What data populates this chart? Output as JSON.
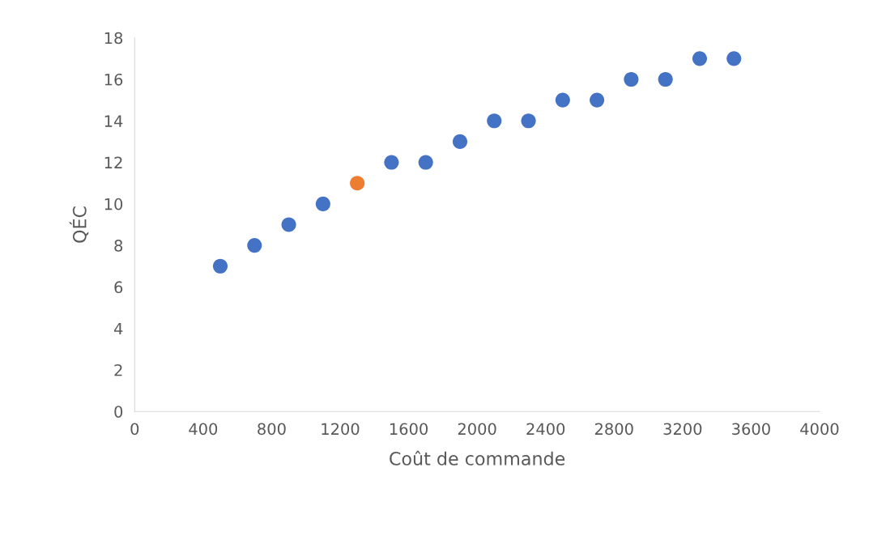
{
  "chart_data": {
    "type": "scatter",
    "xlabel": "Coût de commande",
    "ylabel": "QÉC",
    "xlim": [
      0,
      4000
    ],
    "xticks": [
      0,
      400,
      800,
      1200,
      1600,
      2000,
      2400,
      2800,
      3200,
      3600,
      4000
    ],
    "ylim": [
      0,
      18
    ],
    "yticks": [
      0,
      2,
      4,
      6,
      8,
      10,
      12,
      14,
      16,
      18
    ],
    "grid": false,
    "legend": false,
    "marker": "circle",
    "series": [
      {
        "x": [
          500,
          700,
          900,
          1100,
          1300,
          1500,
          1700,
          1900,
          2100,
          2300,
          2500,
          2700,
          2900,
          3100,
          3300,
          3500
        ],
        "values": [
          7,
          8,
          9,
          10,
          11,
          12,
          12,
          13,
          14,
          14,
          15,
          15,
          16,
          16,
          17,
          17
        ],
        "colors": [
          "#4472c4",
          "#4472c4",
          "#4472c4",
          "#4472c4",
          "#ed7d31",
          "#4472c4",
          "#4472c4",
          "#4472c4",
          "#4472c4",
          "#4472c4",
          "#4472c4",
          "#4472c4",
          "#4472c4",
          "#4472c4",
          "#4472c4",
          "#4472c4"
        ]
      }
    ]
  }
}
